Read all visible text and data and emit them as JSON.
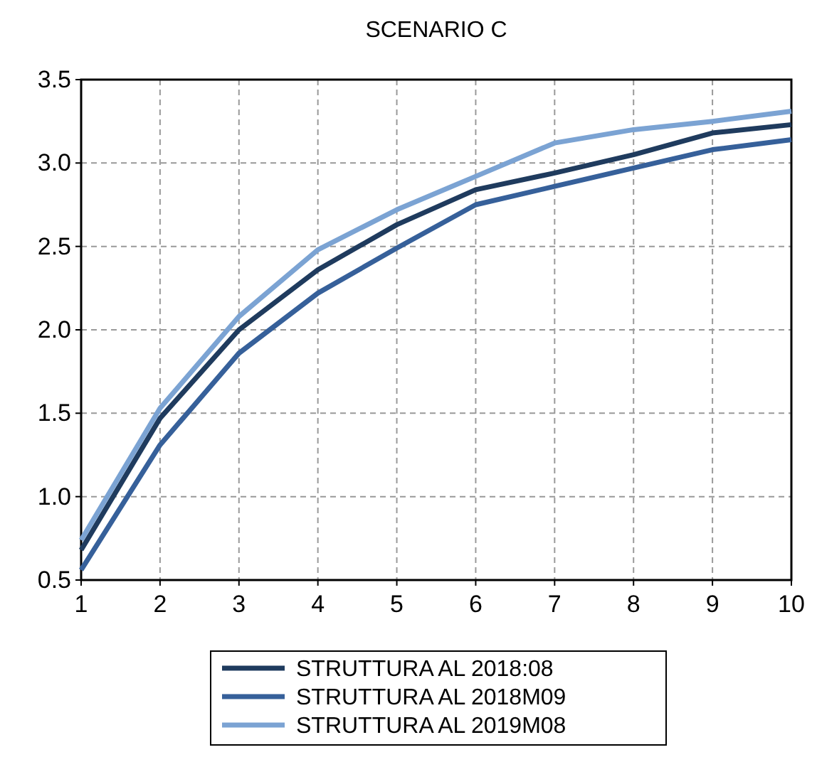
{
  "chart_data": {
    "type": "line",
    "title": "SCENARIO C",
    "x": [
      1,
      2,
      3,
      4,
      5,
      6,
      7,
      8,
      9,
      10
    ],
    "xlim": [
      1,
      10
    ],
    "xticks": [
      1,
      2,
      3,
      4,
      5,
      6,
      7,
      8,
      9,
      10
    ],
    "ylim": [
      0.5,
      3.5
    ],
    "yticks": [
      0.5,
      {
        "value": 1,
        "label": "1.0"
      },
      1.5,
      {
        "value": 2,
        "label": "2.0"
      },
      2.5,
      {
        "value": 3,
        "label": "3.0"
      },
      3.5
    ],
    "grid": true,
    "legend": "bottom",
    "line_style": "solid",
    "marker": "none",
    "series": [
      {
        "name": "STRUTTURA AL 2018:08",
        "color": "#1f3b5e",
        "values": [
          0.68,
          1.47,
          2.0,
          2.36,
          2.63,
          2.84,
          2.94,
          3.05,
          3.18,
          3.23
        ]
      },
      {
        "name": "STRUTTURA AL 2018M09",
        "color": "#36609a",
        "values": [
          0.56,
          1.31,
          1.86,
          2.22,
          2.49,
          2.75,
          2.86,
          2.97,
          3.08,
          3.14
        ]
      },
      {
        "name": "STRUTTURA AL 2019M08",
        "color": "#7ba3d3",
        "values": [
          0.74,
          1.53,
          2.08,
          2.48,
          2.72,
          2.92,
          3.12,
          3.2,
          3.25,
          3.31
        ]
      }
    ]
  }
}
